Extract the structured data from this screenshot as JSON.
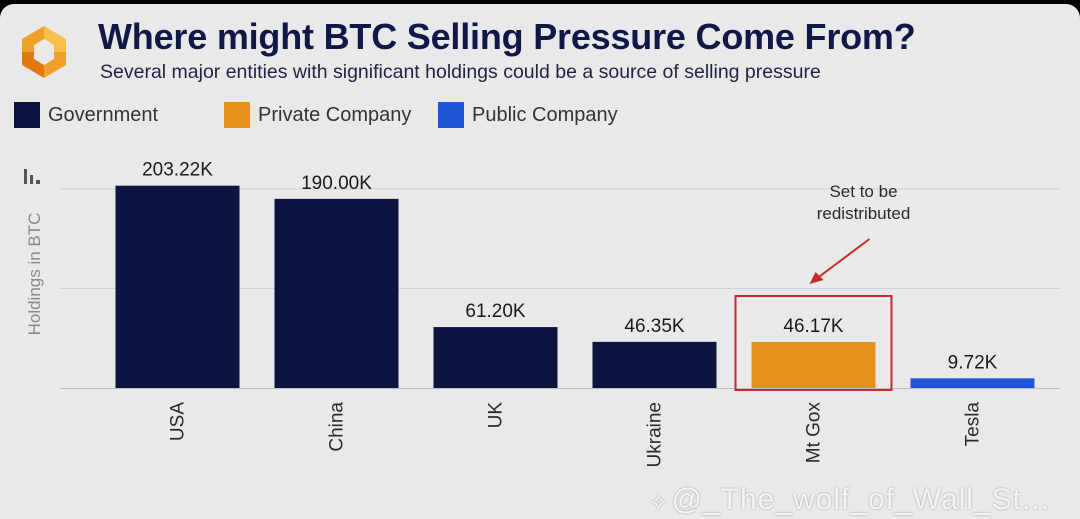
{
  "header": {
    "title": "Where might BTC Selling Pressure Come From?",
    "subtitle": "Several major entities with significant holdings could be a source of selling pressure"
  },
  "legend": {
    "items": [
      {
        "label": "Government",
        "color": "#0d1440"
      },
      {
        "label": "Private Company",
        "color": "#e8901c"
      },
      {
        "label": "Public Company",
        "color": "#1f55d6"
      }
    ]
  },
  "annotation": {
    "line1": "Set to be",
    "line2": "redistributed",
    "highlight_color": "#c62b2b",
    "target": "Mt Gox"
  },
  "watermark": {
    "text": "@_The_wolf_of_Wall_St..."
  },
  "chart_data": {
    "type": "bar",
    "title": "Where might BTC Selling Pressure Come From?",
    "subtitle": "Several major entities with significant holdings could be a source of selling pressure",
    "ylabel": "Holdings in BTC",
    "xlabel": "",
    "ylim": [
      0,
      220000
    ],
    "grid": true,
    "legend_position": "top-left",
    "categories": [
      "USA",
      "China",
      "UK",
      "Ukraine",
      "Mt Gox",
      "Tesla"
    ],
    "values": [
      203220,
      190000,
      61200,
      46350,
      46170,
      9720
    ],
    "data_labels": [
      "203.22K",
      "190.00K",
      "61.20K",
      "46.35K",
      "46.17K",
      "9.72K"
    ],
    "bar_types": [
      "Government",
      "Government",
      "Government",
      "Government",
      "Private Company",
      "Public Company"
    ]
  }
}
